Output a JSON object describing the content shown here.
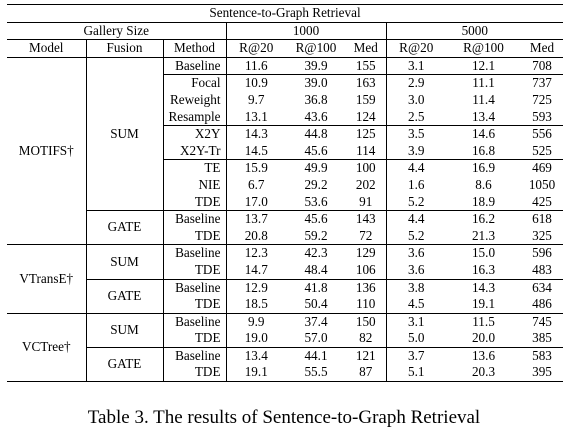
{
  "table": {
    "title": "Sentence-to-Graph Retrieval",
    "gallery_label": "Gallery Size",
    "gallery_sizes": [
      "1000",
      "5000"
    ],
    "headers": {
      "model": "Model",
      "fusion": "Fusion",
      "method": "Method",
      "r20": "R@20",
      "r100": "R@100",
      "med": "Med"
    },
    "models": [
      {
        "name": "MOTIFS†",
        "fusions": [
          {
            "name": "SUM",
            "rows": [
              {
                "method": "Baseline",
                "v": [
                  "11.6",
                  "39.9",
                  "155",
                  "3.1",
                  "12.1",
                  "708"
                ],
                "bold": [
                  false,
                  false,
                  false,
                  false,
                  false,
                  false
                ]
              },
              {
                "method": "Focal",
                "v": [
                  "10.9",
                  "39.0",
                  "163",
                  "2.9",
                  "11.1",
                  "737"
                ],
                "bold": [
                  false,
                  false,
                  false,
                  false,
                  false,
                  false
                ]
              },
              {
                "method": "Reweight",
                "v": [
                  "9.7",
                  "36.8",
                  "159",
                  "3.0",
                  "11.4",
                  "725"
                ],
                "bold": [
                  false,
                  false,
                  false,
                  false,
                  false,
                  false
                ]
              },
              {
                "method": "Resample",
                "v": [
                  "13.1",
                  "43.6",
                  "124",
                  "2.5",
                  "13.4",
                  "593"
                ],
                "bold": [
                  false,
                  false,
                  false,
                  false,
                  false,
                  false
                ]
              },
              {
                "method": "X2Y",
                "v": [
                  "14.3",
                  "44.8",
                  "125",
                  "3.5",
                  "14.6",
                  "556"
                ],
                "bold": [
                  false,
                  false,
                  false,
                  false,
                  false,
                  false
                ]
              },
              {
                "method": "X2Y-Tr",
                "v": [
                  "14.5",
                  "45.6",
                  "114",
                  "3.9",
                  "16.8",
                  "525"
                ],
                "bold": [
                  false,
                  false,
                  false,
                  false,
                  false,
                  false
                ]
              },
              {
                "method": "TE",
                "v": [
                  "15.9",
                  "49.9",
                  "100",
                  "4.4",
                  "16.9",
                  "469"
                ],
                "bold": [
                  false,
                  false,
                  false,
                  false,
                  false,
                  false
                ]
              },
              {
                "method": "NIE",
                "v": [
                  "6.7",
                  "29.2",
                  "202",
                  "1.6",
                  "8.6",
                  "1050"
                ],
                "bold": [
                  false,
                  false,
                  false,
                  false,
                  false,
                  false
                ]
              },
              {
                "method": "TDE",
                "v": [
                  "17.0",
                  "53.6",
                  "91",
                  "5.2",
                  "18.9",
                  "425"
                ],
                "bold": [
                  true,
                  true,
                  true,
                  true,
                  true,
                  true
                ]
              }
            ]
          },
          {
            "name": "GATE",
            "rows": [
              {
                "method": "Baseline",
                "v": [
                  "13.7",
                  "45.6",
                  "143",
                  "4.4",
                  "16.2",
                  "618"
                ],
                "bold": [
                  false,
                  false,
                  false,
                  false,
                  false,
                  false
                ]
              },
              {
                "method": "TDE",
                "v": [
                  "20.8",
                  "59.2",
                  "72",
                  "5.2",
                  "21.3",
                  "325"
                ],
                "bold": [
                  true,
                  true,
                  true,
                  true,
                  true,
                  true
                ]
              }
            ]
          }
        ]
      },
      {
        "name": "VTransE†",
        "fusions": [
          {
            "name": "SUM",
            "rows": [
              {
                "method": "Baseline",
                "v": [
                  "12.3",
                  "42.3",
                  "129",
                  "3.6",
                  "15.0",
                  "596"
                ],
                "bold": [
                  false,
                  false,
                  false,
                  true,
                  false,
                  false
                ]
              },
              {
                "method": "TDE",
                "v": [
                  "14.7",
                  "48.4",
                  "106",
                  "3.6",
                  "16.3",
                  "483"
                ],
                "bold": [
                  true,
                  true,
                  true,
                  true,
                  true,
                  true
                ]
              }
            ]
          },
          {
            "name": "GATE",
            "rows": [
              {
                "method": "Baseline",
                "v": [
                  "12.9",
                  "41.8",
                  "136",
                  "3.8",
                  "14.3",
                  "634"
                ],
                "bold": [
                  false,
                  false,
                  false,
                  false,
                  false,
                  false
                ]
              },
              {
                "method": "TDE",
                "v": [
                  "18.5",
                  "50.4",
                  "110",
                  "4.5",
                  "19.1",
                  "486"
                ],
                "bold": [
                  true,
                  true,
                  true,
                  true,
                  true,
                  true
                ]
              }
            ]
          }
        ]
      },
      {
        "name": "VCTree†",
        "fusions": [
          {
            "name": "SUM",
            "rows": [
              {
                "method": "Baseline",
                "v": [
                  "9.9",
                  "37.4",
                  "150",
                  "3.1",
                  "11.5",
                  "745"
                ],
                "bold": [
                  false,
                  false,
                  false,
                  false,
                  false,
                  false
                ]
              },
              {
                "method": "TDE",
                "v": [
                  "19.0",
                  "57.0",
                  "82",
                  "5.0",
                  "20.0",
                  "385"
                ],
                "bold": [
                  true,
                  true,
                  true,
                  true,
                  true,
                  true
                ]
              }
            ]
          },
          {
            "name": "GATE",
            "rows": [
              {
                "method": "Baseline",
                "v": [
                  "13.4",
                  "44.1",
                  "121",
                  "3.7",
                  "13.6",
                  "583"
                ],
                "bold": [
                  false,
                  false,
                  false,
                  false,
                  false,
                  false
                ]
              },
              {
                "method": "TDE",
                "v": [
                  "19.1",
                  "55.5",
                  "87",
                  "5.1",
                  "20.3",
                  "395"
                ],
                "bold": [
                  true,
                  true,
                  true,
                  true,
                  true,
                  true
                ]
              }
            ]
          }
        ]
      }
    ],
    "caption": "Table 3. The results of Sentence-to-Graph Retrieval"
  }
}
